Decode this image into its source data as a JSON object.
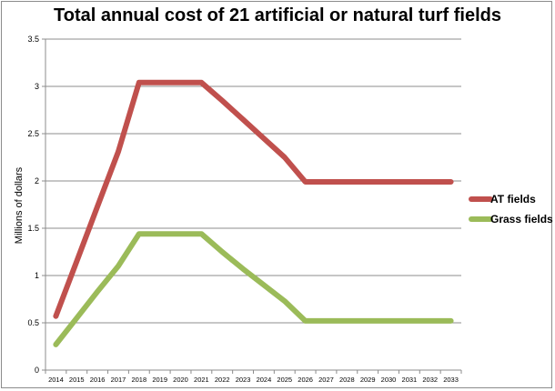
{
  "chart_data": {
    "type": "line",
    "title": "Total annual cost of 21 artificial or natural turf fields",
    "xlabel": "",
    "ylabel": "Millions of dollars",
    "ylim": [
      0,
      3.5
    ],
    "yticks": [
      "0",
      "0.5",
      "1",
      "1.5",
      "2",
      "2.5",
      "3",
      "3.5"
    ],
    "grid": true,
    "legend_position": "right",
    "categories": [
      "2014",
      "2015",
      "2016",
      "2017",
      "2018",
      "2019",
      "2020",
      "2021",
      "2022",
      "2023",
      "2024",
      "2025",
      "2026",
      "2027",
      "2028",
      "2029",
      "2030",
      "2031",
      "2032",
      "2033"
    ],
    "series": [
      {
        "name": "AT fields",
        "color": "#c0504d",
        "values": [
          0.57,
          1.15,
          1.73,
          2.31,
          3.04,
          3.04,
          3.04,
          3.04,
          2.85,
          2.65,
          2.45,
          2.25,
          1.99,
          1.99,
          1.99,
          1.99,
          1.99,
          1.99,
          1.99,
          1.99
        ]
      },
      {
        "name": "Grass fields",
        "color": "#9bbb59",
        "values": [
          0.27,
          0.55,
          0.83,
          1.1,
          1.44,
          1.44,
          1.44,
          1.44,
          1.25,
          1.07,
          0.9,
          0.73,
          0.52,
          0.52,
          0.52,
          0.52,
          0.52,
          0.52,
          0.52,
          0.52
        ]
      }
    ]
  }
}
